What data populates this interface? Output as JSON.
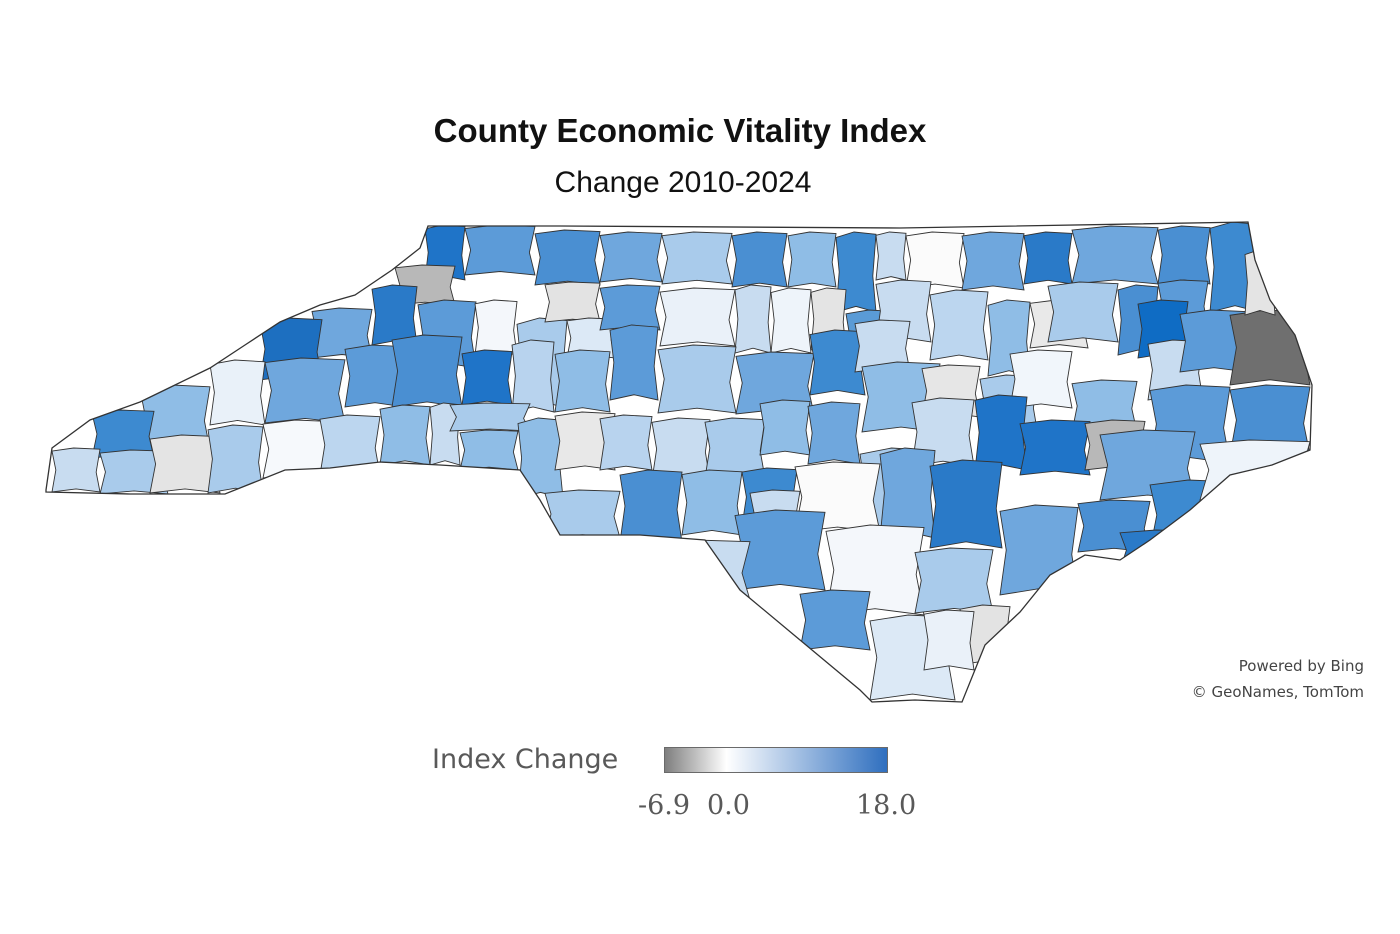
{
  "header": {
    "title": "County Economic Vitality Index",
    "subtitle": "Change 2010-2024"
  },
  "legend": {
    "title": "Index Change",
    "min_label": "-6.9",
    "mid_label": "0.0",
    "max_label": "18.0",
    "scale": {
      "min": -6.9,
      "mid": 0.0,
      "max": 18.0
    },
    "colors": {
      "min": "#7f7f7f",
      "mid": "#ffffff",
      "max": "#2f6fbf"
    }
  },
  "credits": {
    "line1": "Powered by Bing",
    "line2": "© GeoNames, TomTom"
  },
  "map": {
    "region": "North Carolina",
    "border_color": "#333333",
    "county_fills": [
      "#1f74c8",
      "#b8b8b8",
      "#5c9bd8",
      "#4a8fd2",
      "#6fa7dd",
      "#a9cbeb",
      "#4a8fd2",
      "#8fbde6",
      "#3d8ad0",
      "#c8dcf0",
      "#fbfbfb",
      "#6fa7dd",
      "#2a7ac8",
      "#6fa7dd",
      "#4a8fd2",
      "#3d8ad0",
      "#2a7ac8",
      "#5c9bd8",
      "#f4f7fb",
      "#a9cbeb",
      "#e3e3e3",
      "#dce9f6",
      "#5c9bd8",
      "#eaf1f9",
      "#c8dcf0",
      "#eef4fa",
      "#e4e4e4",
      "#5a9bd6",
      "#c8dcf0",
      "#bcd6ef",
      "#8fbde6",
      "#e9e9e9",
      "#a9cbeb",
      "#4a8fd2",
      "#5c9bd8",
      "#0f6cc4",
      "#6fa7dd",
      "#1d6fc0",
      "#6fa7dd",
      "#5c9bd8",
      "#4a8fd2",
      "#1f74c8",
      "#b8d3ee",
      "#8fbde6",
      "#5c9bd8",
      "#a9cbeb",
      "#6fa7dd",
      "#3d8ad0",
      "#c8dcf0",
      "#8fbde6",
      "#e6e6e6",
      "#a9cbeb",
      "#f1f6fb",
      "#8fbde6",
      "#c8dcf0",
      "#5c9bd8",
      "#6f6f6f",
      "#e9f1f9",
      "#8fbde6",
      "#3d8ad0",
      "#c8dcf0",
      "#a9cbeb",
      "#e4e4e4",
      "#a9cbeb",
      "#f6f9fc",
      "#bcd6ef",
      "#8fbde6",
      "#c8dcf0",
      "#a9cbeb",
      "#8fbde6",
      "#8fbde6",
      "#e8e8e8",
      "#b8d3ee",
      "#c8dcf0",
      "#a9cbeb",
      "#8fbde6",
      "#6fa7dd",
      "#a9cbeb",
      "#c8dcf0",
      "#1f74c8"
    ]
  }
}
